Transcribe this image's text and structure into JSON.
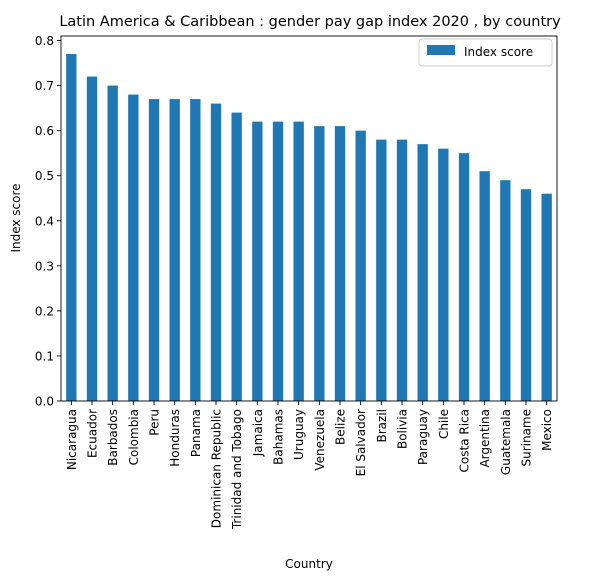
{
  "chart_data": {
    "type": "bar",
    "title": "Latin America & Caribbean : gender pay gap index 2020 , by country",
    "xlabel": "Country",
    "ylabel": "Index score",
    "ylim": [
      0,
      0.81
    ],
    "yticks": [
      "0.0",
      "0.1",
      "0.2",
      "0.3",
      "0.4",
      "0.5",
      "0.6",
      "0.7",
      "0.8"
    ],
    "legend_position": "top-right",
    "grid": false,
    "bar_color": "#1f77b4",
    "categories": [
      "Nicaragua",
      "Ecuador",
      "Barbados",
      "Colombia",
      "Peru",
      "Honduras",
      "Panama",
      "Dominican Republic",
      "Trinidad and Tobago",
      "Jamaica",
      "Bahamas",
      "Uruguay",
      "Venezuela",
      "Belize",
      "El Salvador",
      "Brazil",
      "Bolivia",
      "Paraguay",
      "Chile",
      "Costa Rica",
      "Argentina",
      "Guatemala",
      "Suriname",
      "Mexico"
    ],
    "series": [
      {
        "name": "Index score",
        "values": [
          0.77,
          0.72,
          0.7,
          0.68,
          0.67,
          0.67,
          0.67,
          0.66,
          0.64,
          0.62,
          0.62,
          0.62,
          0.61,
          0.61,
          0.6,
          0.58,
          0.58,
          0.57,
          0.56,
          0.55,
          0.51,
          0.49,
          0.47,
          0.46
        ]
      }
    ]
  }
}
